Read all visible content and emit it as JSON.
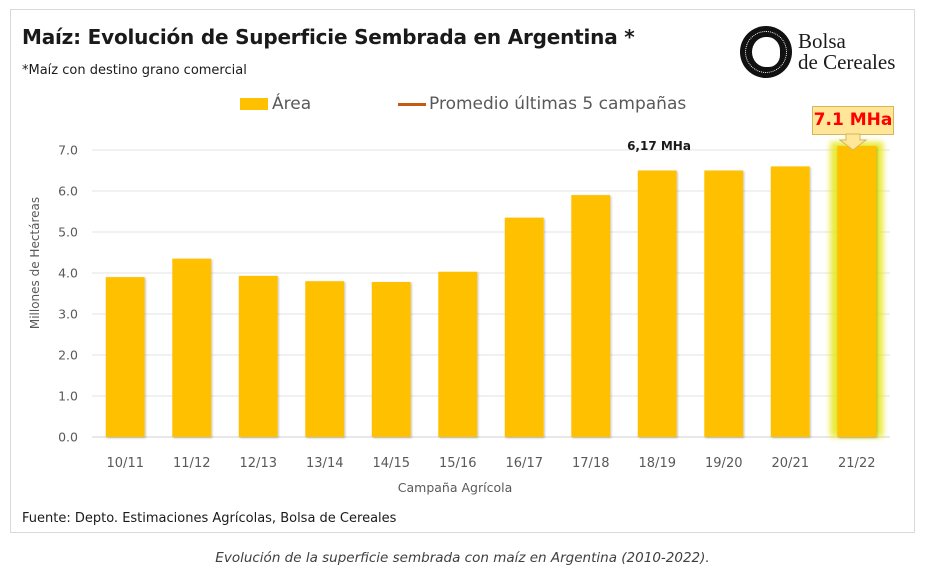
{
  "caption": "Evolución de la superficie sembrada con maíz en Argentina (2010-2022).",
  "logo": {
    "line1": "Bolsa",
    "line2": "de Cereales",
    "icon": "bolsa-de-cereales-seal-icon"
  },
  "source": "Fuente: Depto.  Estimaciones Agrícolas, Bolsa de Cereales",
  "colors": {
    "bar": "#FFC000",
    "average_line": "#C55A11",
    "highlight_glow": "#E6E619",
    "callout_bg": "#FFE699",
    "callout_text": "#FF0000"
  },
  "chart_data": {
    "type": "bar",
    "title": "Maíz: Evolución de Superficie Sembrada en Argentina *",
    "subtitle": "*Maíz con destino grano comercial",
    "xlabel": "Campaña Agrícola",
    "ylabel": "Millones de Hectáreas",
    "ylim": [
      0,
      7
    ],
    "yticks": [
      "0.0",
      "1.0",
      "2.0",
      "3.0",
      "4.0",
      "5.0",
      "6.0",
      "7.0"
    ],
    "grid": true,
    "legend_position": "top",
    "categories": [
      "10/11",
      "11/12",
      "12/13",
      "13/14",
      "14/15",
      "15/16",
      "16/17",
      "17/18",
      "18/19",
      "19/20",
      "20/21",
      "21/22"
    ],
    "series": [
      {
        "name": "Área",
        "type": "bar",
        "values": [
          3.9,
          4.35,
          3.93,
          3.8,
          3.78,
          4.03,
          5.35,
          5.9,
          6.5,
          6.5,
          6.6,
          7.1
        ]
      },
      {
        "name": "Promedio últimas 5 campañas",
        "type": "line",
        "value": 6.17,
        "from": "16/17",
        "to": "20/21"
      }
    ],
    "annotations": [
      {
        "text": "6,17 MHa",
        "target": "Promedio últimas 5 campañas"
      },
      {
        "text": "7.1 MHa",
        "target": "21/22",
        "style": "callout",
        "highlighted": true
      }
    ]
  }
}
